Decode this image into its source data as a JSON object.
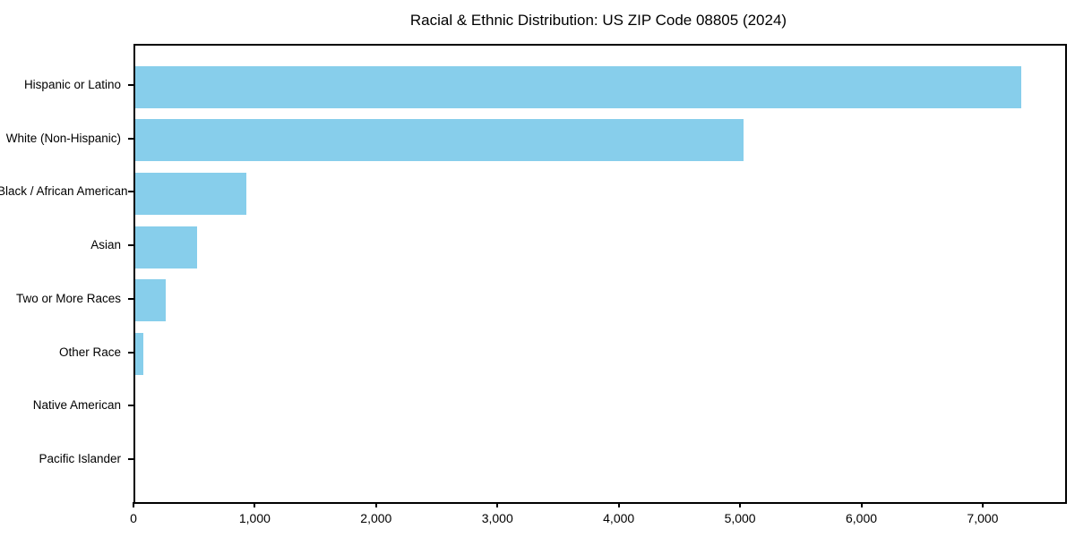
{
  "chart_data": {
    "type": "bar",
    "orientation": "horizontal",
    "title": "Racial & Ethnic Distribution: US ZIP Code 08805 (2024)",
    "categories": [
      "Hispanic or Latino",
      "White (Non-Hispanic)",
      "Black / African American",
      "Asian",
      "Two or More Races",
      "Other Race",
      "Native American",
      "Pacific Islander"
    ],
    "values": [
      7300,
      5015,
      915,
      510,
      250,
      65,
      0,
      0
    ],
    "bar_color": "#87CEEB",
    "spine_color": "#000000",
    "xlabel": "",
    "ylabel": "",
    "xlim": [
      0,
      7665
    ],
    "x_ticks": [
      0,
      1000,
      2000,
      3000,
      4000,
      5000,
      6000,
      7000
    ],
    "x_tick_labels": [
      "0",
      "1,000",
      "2,000",
      "3,000",
      "4,000",
      "5,000",
      "6,000",
      "7,000"
    ],
    "grid": false,
    "legend": "none"
  }
}
